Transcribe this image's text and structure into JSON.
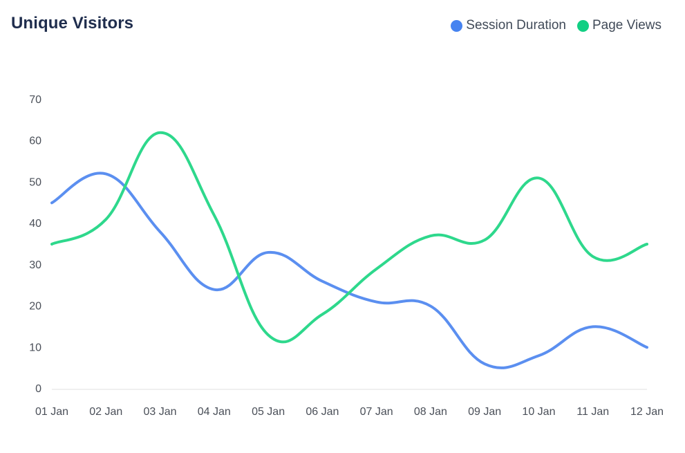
{
  "chart_data": {
    "type": "line",
    "title": "Unique Visitors",
    "categories": [
      "01 Jan",
      "02 Jan",
      "03 Jan",
      "04 Jan",
      "05 Jan",
      "06 Jan",
      "07 Jan",
      "08 Jan",
      "09 Jan",
      "10 Jan",
      "11 Jan",
      "12 Jan"
    ],
    "series": [
      {
        "name": "Session Duration",
        "color": "#5b8ff0",
        "values": [
          45,
          52,
          38,
          24,
          33,
          26,
          21,
          20,
          6,
          8,
          15,
          10
        ]
      },
      {
        "name": "Page Views",
        "color": "#2ed88c",
        "values": [
          35,
          41,
          62,
          42,
          13,
          18,
          29,
          37,
          36,
          51,
          32,
          35
        ]
      }
    ],
    "yticks": [
      0,
      10,
      20,
      30,
      40,
      50,
      60,
      70
    ],
    "ylim": [
      0,
      70
    ],
    "legend_position": "top-right",
    "grid": false,
    "curve": "smooth"
  },
  "legend": [
    {
      "label": "Session Duration",
      "color": "#4683f0"
    },
    {
      "label": "Page Views",
      "color": "#12cf83"
    }
  ]
}
